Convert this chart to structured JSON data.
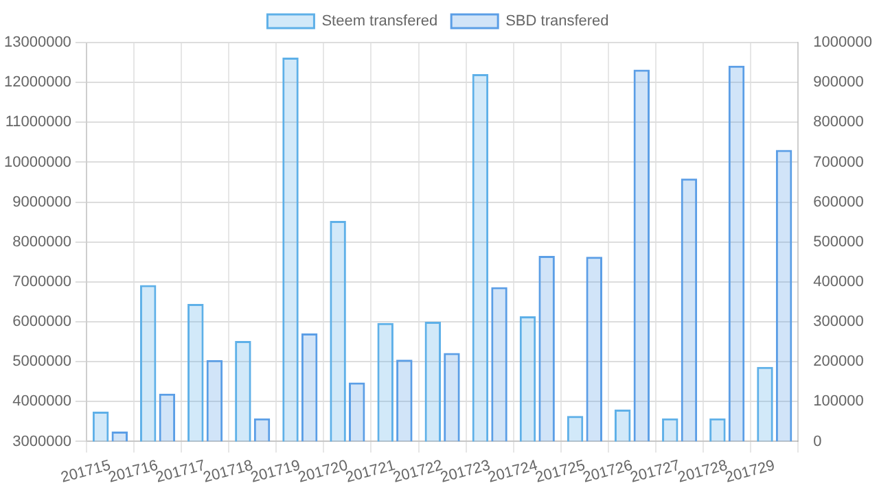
{
  "chart_data": {
    "type": "bar",
    "categories": [
      "201715",
      "201716",
      "201717",
      "201718",
      "201719",
      "201720",
      "201721",
      "201722",
      "201723",
      "201724",
      "201725",
      "201726",
      "201727",
      "201728",
      "201729"
    ],
    "series": [
      {
        "name": "Steem transfered",
        "color": "#5eb0e8",
        "values": [
          3750000,
          6920000,
          6450000,
          5520000,
          12620000,
          8530000,
          5970000,
          6000000,
          12210000,
          6140000,
          3640000,
          3800000,
          3580000,
          3580000,
          4870000
        ]
      },
      {
        "name": "SBD transfered",
        "color": "#5b9ee6",
        "axis": "y2",
        "values": [
          25000,
          120000,
          204000,
          58000,
          271000,
          148000,
          205000,
          222000,
          387000,
          465000,
          463000,
          932000,
          659000,
          942000,
          731000
        ]
      }
    ],
    "ylim": [
      3000000,
      13000000
    ],
    "yticks": [
      3000000,
      4000000,
      5000000,
      6000000,
      7000000,
      8000000,
      9000000,
      10000000,
      11000000,
      12000000,
      13000000
    ],
    "y2lim": [
      0,
      1000000
    ],
    "y2ticks": [
      0,
      100000,
      200000,
      300000,
      400000,
      500000,
      600000,
      700000,
      800000,
      900000,
      1000000
    ],
    "grid": true,
    "legend": "top"
  }
}
